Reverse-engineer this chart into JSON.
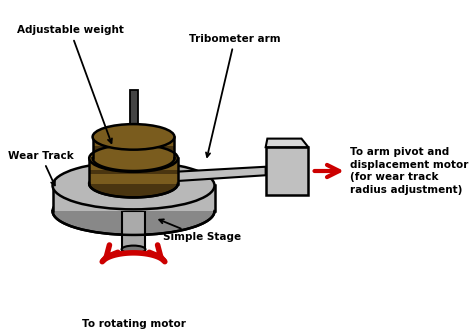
{
  "bg_color": "#ffffff",
  "pin_color": "#7a5c1e",
  "pin_dark": "#4a3510",
  "pin_texture": "#6b5018",
  "disc_color": "#b8b8b8",
  "disc_dark": "#888888",
  "disc_inner": "#d0d0d0",
  "shaft_color": "#aaaaaa",
  "shaft_dark": "#777777",
  "arm_color": "#c0c0c0",
  "box_color": "#c0c0c0",
  "rod_color": "#444444",
  "arrow_red": "#cc0000",
  "label_adjustable_weight": "Adjustable weight",
  "label_tribometer_arm": "Tribometer arm",
  "label_wear_track": "Wear Track",
  "label_simple_stage": "Simple Stage",
  "label_to_arm_pivot": "To arm pivot and\ndisplacement motor\n(for wear track\nradius adjustment)",
  "label_to_rotating": "To rotating motor",
  "font_size": 7.5,
  "font_weight": "bold"
}
